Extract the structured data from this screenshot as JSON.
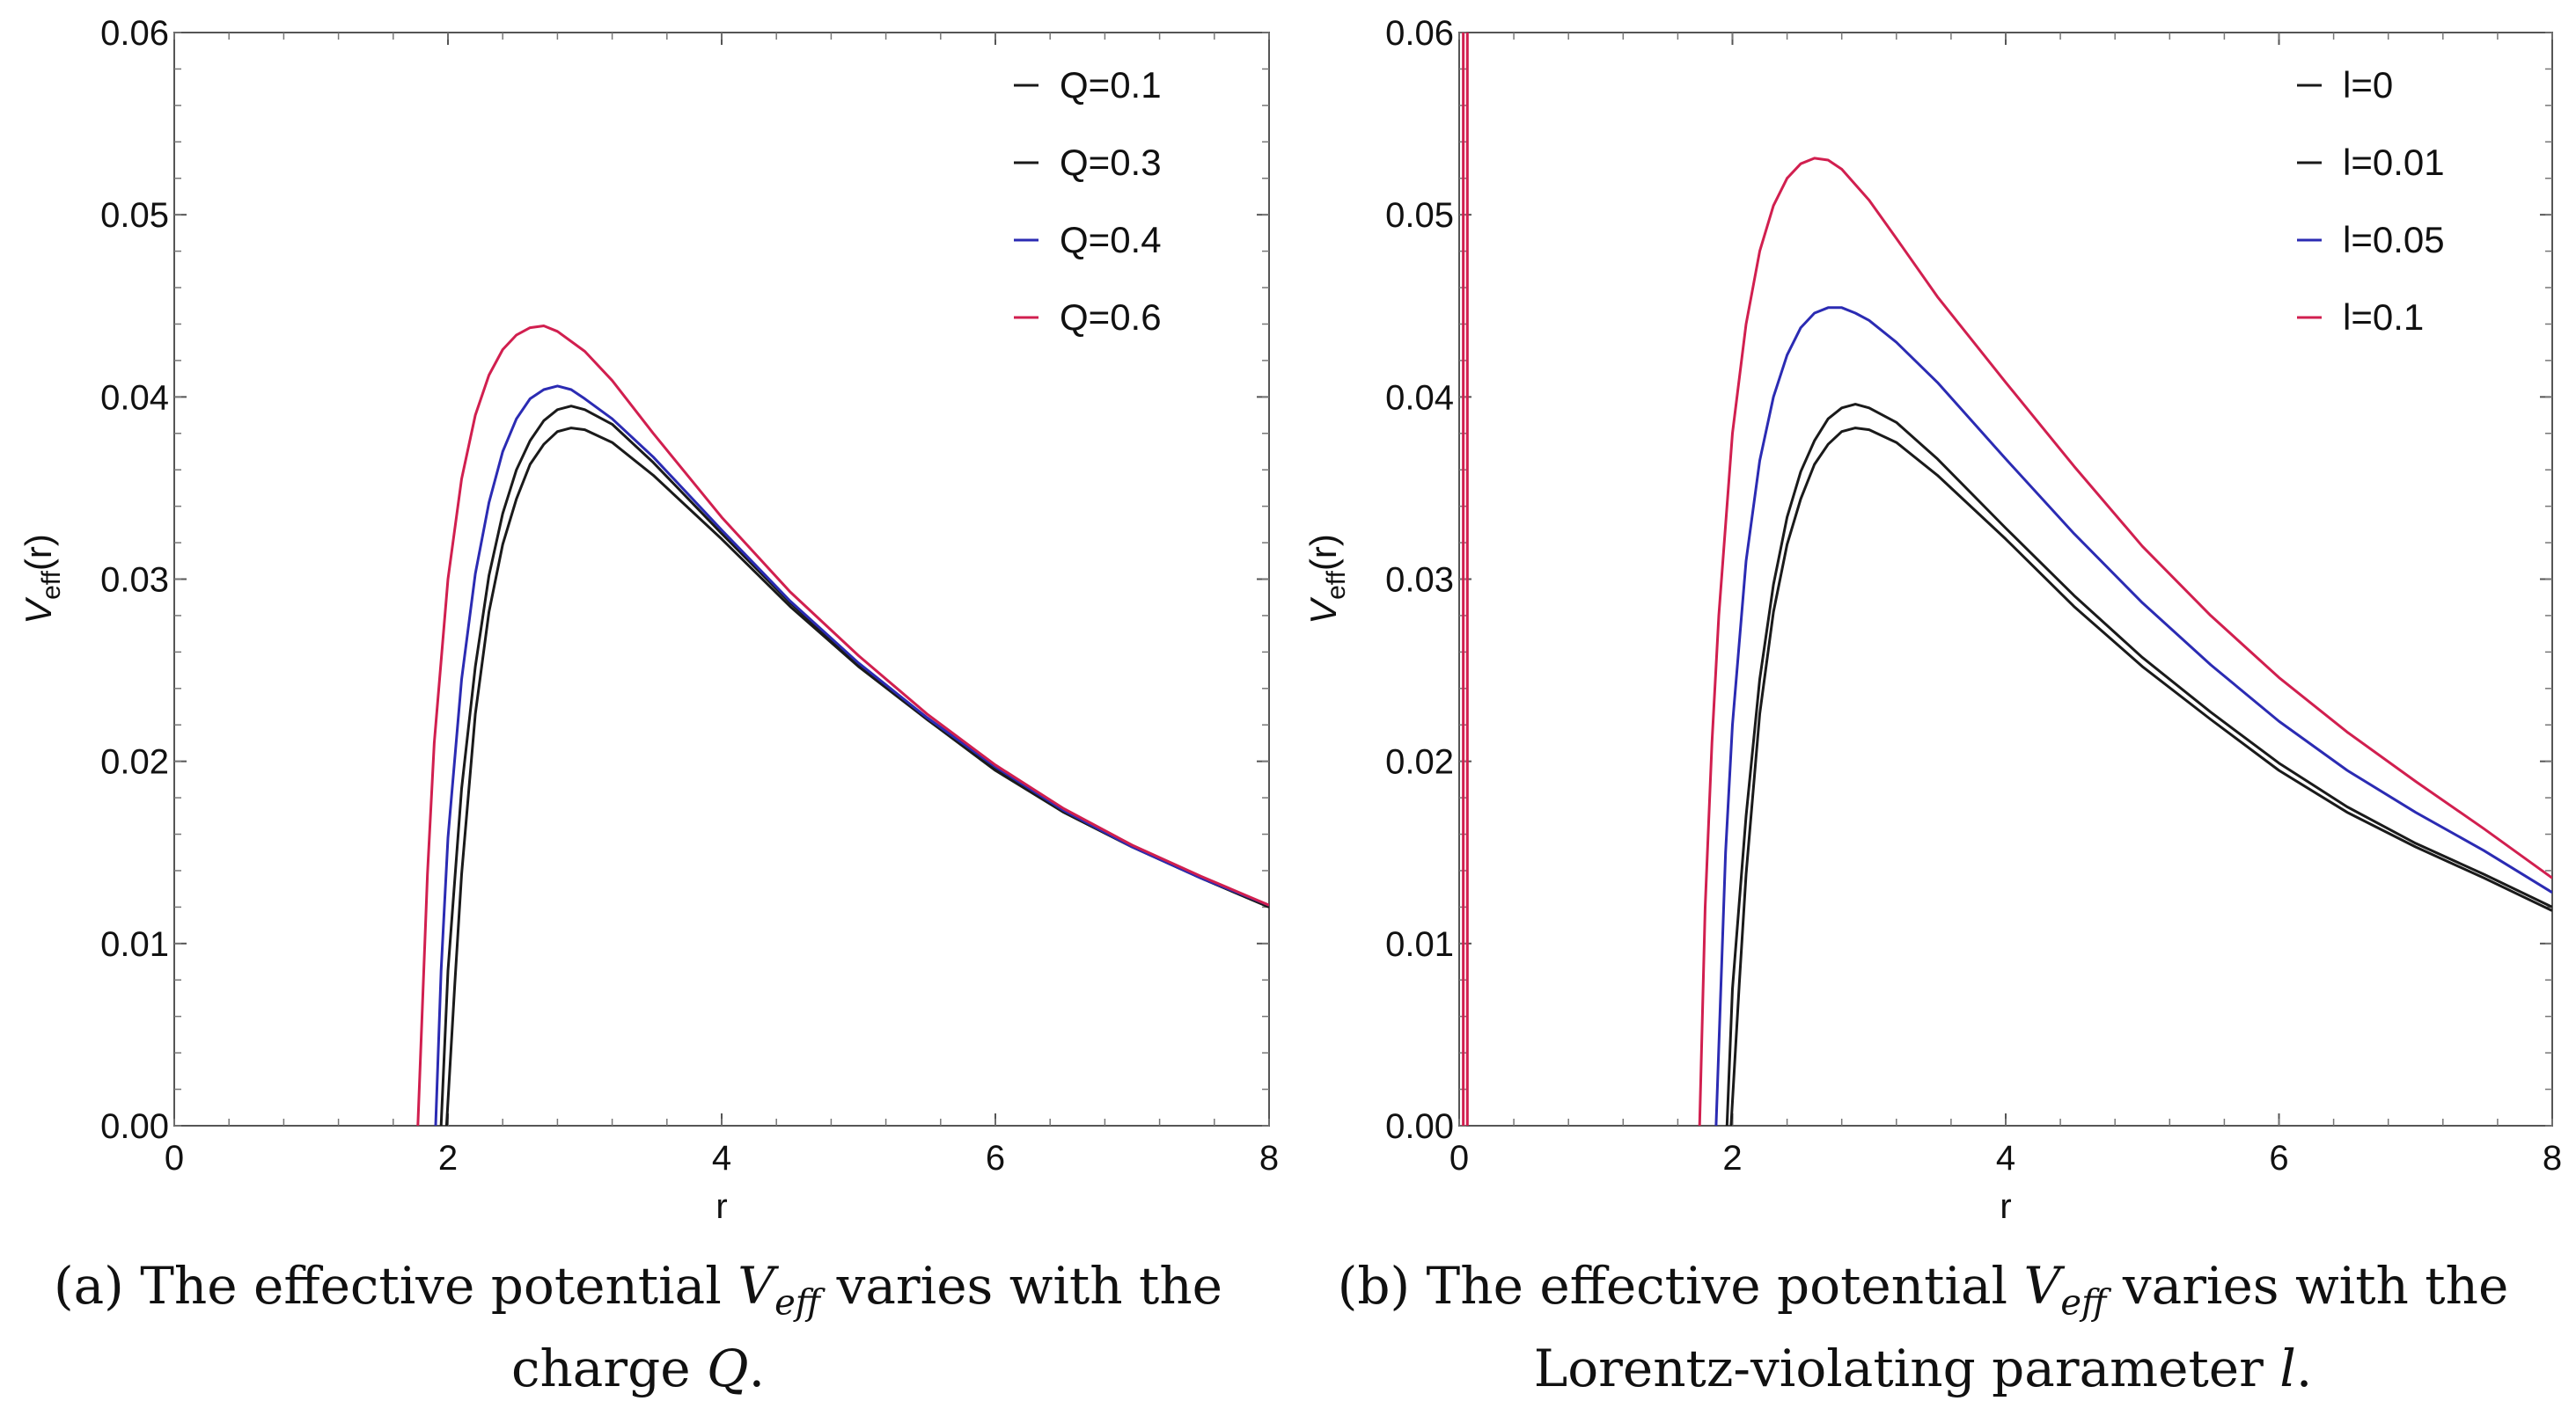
{
  "chart_data": [
    {
      "type": "line",
      "xlabel": "r",
      "ylabel": "V",
      "ylabel_sub": "eff",
      "ylabel_suffix": "(r)",
      "xlim": [
        0,
        8
      ],
      "ylim": [
        0,
        0.06
      ],
      "xticks": [
        "0",
        "2",
        "4",
        "6",
        "8"
      ],
      "yticks": [
        "0.00",
        "0.01",
        "0.02",
        "0.03",
        "0.04",
        "0.05",
        "0.06"
      ],
      "legend_position": "top-right",
      "grid": false,
      "series": [
        {
          "name": "Q=0.1",
          "color": "#1a1a1a",
          "points": [
            [
              1.99,
              0
            ],
            [
              2.05,
              0.0078
            ],
            [
              2.1,
              0.0138
            ],
            [
              2.2,
              0.0226
            ],
            [
              2.3,
              0.0282
            ],
            [
              2.4,
              0.0319
            ],
            [
              2.5,
              0.0344
            ],
            [
              2.6,
              0.0363
            ],
            [
              2.7,
              0.0374
            ],
            [
              2.8,
              0.0381
            ],
            [
              2.9,
              0.0383
            ],
            [
              3.0,
              0.0382
            ],
            [
              3.2,
              0.0375
            ],
            [
              3.5,
              0.0357
            ],
            [
              4.0,
              0.0322
            ],
            [
              4.5,
              0.0285
            ],
            [
              5.0,
              0.0252
            ],
            [
              5.5,
              0.0223
            ],
            [
              6.0,
              0.0195
            ],
            [
              6.5,
              0.0172
            ],
            [
              7.0,
              0.0153
            ],
            [
              7.5,
              0.0136
            ],
            [
              8.0,
              0.012
            ]
          ]
        },
        {
          "name": "Q=0.3",
          "color": "#1a1a1a",
          "points": [
            [
              1.95,
              0
            ],
            [
              2.0,
              0.0085
            ],
            [
              2.1,
              0.0185
            ],
            [
              2.2,
              0.0252
            ],
            [
              2.3,
              0.0302
            ],
            [
              2.4,
              0.0336
            ],
            [
              2.5,
              0.036
            ],
            [
              2.6,
              0.0376
            ],
            [
              2.7,
              0.0387
            ],
            [
              2.8,
              0.0393
            ],
            [
              2.9,
              0.0395
            ],
            [
              3.0,
              0.0393
            ],
            [
              3.2,
              0.0385
            ],
            [
              3.5,
              0.0364
            ],
            [
              4.0,
              0.0325
            ],
            [
              4.5,
              0.0287
            ],
            [
              5.0,
              0.0253
            ],
            [
              5.5,
              0.0223
            ],
            [
              6.0,
              0.0196
            ],
            [
              6.5,
              0.0172
            ],
            [
              7.0,
              0.0153
            ],
            [
              7.5,
              0.0136
            ],
            [
              8.0,
              0.012
            ]
          ]
        },
        {
          "name": "Q=0.4",
          "color": "#2b2bb3",
          "points": [
            [
              1.91,
              0
            ],
            [
              1.95,
              0.0085
            ],
            [
              2.0,
              0.0158
            ],
            [
              2.1,
              0.0245
            ],
            [
              2.2,
              0.0303
            ],
            [
              2.3,
              0.0342
            ],
            [
              2.4,
              0.037
            ],
            [
              2.5,
              0.0388
            ],
            [
              2.6,
              0.0399
            ],
            [
              2.7,
              0.0404
            ],
            [
              2.8,
              0.0406
            ],
            [
              2.9,
              0.0404
            ],
            [
              3.0,
              0.0399
            ],
            [
              3.2,
              0.0388
            ],
            [
              3.5,
              0.0367
            ],
            [
              4.0,
              0.0327
            ],
            [
              4.5,
              0.0288
            ],
            [
              5.0,
              0.0254
            ],
            [
              5.5,
              0.0224
            ],
            [
              6.0,
              0.0197
            ],
            [
              6.5,
              0.0173
            ],
            [
              7.0,
              0.0153
            ],
            [
              7.5,
              0.0136
            ],
            [
              8.0,
              0.0121
            ]
          ]
        },
        {
          "name": "Q=0.6",
          "color": "#d11f4f",
          "points": [
            [
              1.78,
              0
            ],
            [
              1.85,
              0.0138
            ],
            [
              1.9,
              0.021
            ],
            [
              2.0,
              0.03
            ],
            [
              2.1,
              0.0355
            ],
            [
              2.2,
              0.039
            ],
            [
              2.3,
              0.0412
            ],
            [
              2.4,
              0.0426
            ],
            [
              2.5,
              0.0434
            ],
            [
              2.6,
              0.0438
            ],
            [
              2.7,
              0.0439
            ],
            [
              2.8,
              0.0436
            ],
            [
              3.0,
              0.0425
            ],
            [
              3.2,
              0.0409
            ],
            [
              3.5,
              0.038
            ],
            [
              4.0,
              0.0334
            ],
            [
              4.5,
              0.0293
            ],
            [
              5.0,
              0.0258
            ],
            [
              5.5,
              0.0226
            ],
            [
              6.0,
              0.0198
            ],
            [
              6.5,
              0.0174
            ],
            [
              7.0,
              0.0154
            ],
            [
              7.5,
              0.0137
            ],
            [
              8.0,
              0.0121
            ]
          ]
        }
      ]
    },
    {
      "type": "line",
      "xlabel": "r",
      "ylabel": "V",
      "ylabel_sub": "eff",
      "ylabel_suffix": "(r)",
      "xlim": [
        0,
        8
      ],
      "ylim": [
        0,
        0.06
      ],
      "xticks": [
        "0",
        "2",
        "4",
        "6",
        "8"
      ],
      "yticks": [
        "0.00",
        "0.01",
        "0.02",
        "0.03",
        "0.04",
        "0.05",
        "0.06"
      ],
      "legend_position": "top-right",
      "grid": false,
      "series": [
        {
          "name": "l=0",
          "color": "#1a1a1a",
          "points": [
            [
              1.99,
              0
            ],
            [
              2.05,
              0.0078
            ],
            [
              2.1,
              0.0138
            ],
            [
              2.2,
              0.0226
            ],
            [
              2.3,
              0.0282
            ],
            [
              2.4,
              0.0319
            ],
            [
              2.5,
              0.0344
            ],
            [
              2.6,
              0.0363
            ],
            [
              2.7,
              0.0374
            ],
            [
              2.8,
              0.0381
            ],
            [
              2.9,
              0.0383
            ],
            [
              3.0,
              0.0382
            ],
            [
              3.2,
              0.0375
            ],
            [
              3.5,
              0.0357
            ],
            [
              4.0,
              0.0322
            ],
            [
              4.5,
              0.0285
            ],
            [
              5.0,
              0.0252
            ],
            [
              5.5,
              0.0223
            ],
            [
              6.0,
              0.0195
            ],
            [
              6.5,
              0.0172
            ],
            [
              7.0,
              0.0153
            ],
            [
              7.5,
              0.0136
            ],
            [
              8.0,
              0.0118
            ]
          ]
        },
        {
          "name": "l=0.01",
          "color": "#1a1a1a",
          "points": [
            [
              1.96,
              0
            ],
            [
              2.0,
              0.0075
            ],
            [
              2.1,
              0.017
            ],
            [
              2.2,
              0.0245
            ],
            [
              2.3,
              0.0297
            ],
            [
              2.4,
              0.0334
            ],
            [
              2.5,
              0.0359
            ],
            [
              2.6,
              0.0376
            ],
            [
              2.7,
              0.0388
            ],
            [
              2.8,
              0.0394
            ],
            [
              2.9,
              0.0396
            ],
            [
              3.0,
              0.0394
            ],
            [
              3.2,
              0.0386
            ],
            [
              3.5,
              0.0366
            ],
            [
              4.0,
              0.0328
            ],
            [
              4.5,
              0.0291
            ],
            [
              5.0,
              0.0257
            ],
            [
              5.5,
              0.0227
            ],
            [
              6.0,
              0.0199
            ],
            [
              6.5,
              0.0175
            ],
            [
              7.0,
              0.0155
            ],
            [
              7.5,
              0.0138
            ],
            [
              8.0,
              0.012
            ]
          ]
        },
        {
          "name": "l=0.05",
          "color": "#2b2bb3",
          "points": [
            [
              1.88,
              0
            ],
            [
              1.95,
              0.015
            ],
            [
              2.0,
              0.022
            ],
            [
              2.1,
              0.031
            ],
            [
              2.2,
              0.0365
            ],
            [
              2.3,
              0.04
            ],
            [
              2.4,
              0.0423
            ],
            [
              2.5,
              0.0438
            ],
            [
              2.6,
              0.0446
            ],
            [
              2.7,
              0.0449
            ],
            [
              2.8,
              0.0449
            ],
            [
              2.9,
              0.0446
            ],
            [
              3.0,
              0.0442
            ],
            [
              3.2,
              0.043
            ],
            [
              3.5,
              0.0408
            ],
            [
              4.0,
              0.0366
            ],
            [
              4.5,
              0.0325
            ],
            [
              5.0,
              0.0287
            ],
            [
              5.5,
              0.0253
            ],
            [
              6.0,
              0.0222
            ],
            [
              6.5,
              0.0195
            ],
            [
              7.0,
              0.0172
            ],
            [
              7.5,
              0.0151
            ],
            [
              8.0,
              0.0128
            ]
          ]
        },
        {
          "name": "l=0.1",
          "color": "#d11f4f",
          "points": [
            [
              1.76,
              0
            ],
            [
              1.8,
              0.012
            ],
            [
              1.85,
              0.021
            ],
            [
              1.9,
              0.028
            ],
            [
              2.0,
              0.038
            ],
            [
              2.1,
              0.044
            ],
            [
              2.2,
              0.048
            ],
            [
              2.3,
              0.0505
            ],
            [
              2.4,
              0.052
            ],
            [
              2.5,
              0.0528
            ],
            [
              2.6,
              0.0531
            ],
            [
              2.7,
              0.053
            ],
            [
              2.8,
              0.0525
            ],
            [
              3.0,
              0.0508
            ],
            [
              3.2,
              0.0487
            ],
            [
              3.5,
              0.0455
            ],
            [
              4.0,
              0.0408
            ],
            [
              4.5,
              0.0362
            ],
            [
              5.0,
              0.0318
            ],
            [
              5.5,
              0.028
            ],
            [
              6.0,
              0.0246
            ],
            [
              6.5,
              0.0216
            ],
            [
              7.0,
              0.0189
            ],
            [
              7.5,
              0.0163
            ],
            [
              8.0,
              0.0136
            ]
          ]
        }
      ],
      "near_zero_series": [
        {
          "color": "#d11f4f",
          "x": 0.03
        },
        {
          "color": "#d11f4f",
          "x": 0.06
        }
      ]
    }
  ],
  "captions": [
    {
      "label": "(a)",
      "text_before": "The effective potential",
      "symbol": "V",
      "symbol_sub": "eff",
      "text_after": "varies with the",
      "line2": "charge",
      "line2_symbol": "Q",
      "line2_end": "."
    },
    {
      "label": "(b)",
      "text_before": "The effective potential",
      "symbol": "V",
      "symbol_sub": "eff",
      "text_after": "varies with the",
      "line2": "Lorentz-violating parameter",
      "line2_symbol": "l",
      "line2_end": "."
    }
  ]
}
